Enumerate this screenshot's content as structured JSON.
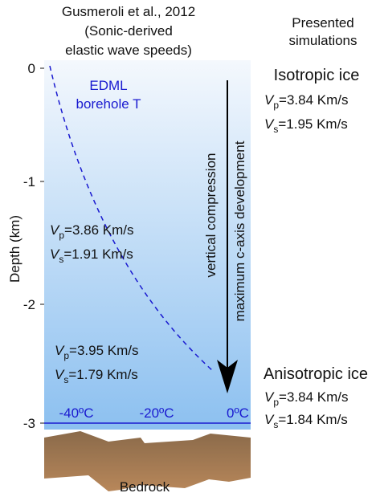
{
  "header": {
    "source": [
      "Gusmeroli et al., 2012",
      "(Sonic-derived",
      "elastic wave speeds)"
    ],
    "simulations": [
      "Presented",
      "simulations"
    ]
  },
  "axis": {
    "label": "Depth (km)",
    "ticks": [
      "0",
      "-1",
      "-2",
      "-3"
    ]
  },
  "temperature_labels": [
    "-40ºC",
    "-20ºC",
    "0ºC"
  ],
  "profile_label": [
    "EDML",
    "borehole T"
  ],
  "arrow_labels": [
    "vertical compression",
    "maximum c-axis development"
  ],
  "bedrock": "Bedrock",
  "measurements": [
    {
      "vp": {
        "symbol": "V",
        "sub": "p",
        "text": "=3.86 Km/s"
      },
      "vs": {
        "symbol": "V",
        "sub": "s",
        "text": "=1.91 Km/s"
      }
    },
    {
      "vp": {
        "symbol": "V",
        "sub": "p",
        "text": "=3.95 Km/s"
      },
      "vs": {
        "symbol": "V",
        "sub": "s",
        "text": "=1.79 Km/s"
      }
    }
  ],
  "simulations": [
    {
      "title": "Isotropic ice",
      "vp": {
        "symbol": "V",
        "sub": "p",
        "text": "=3.84 Km/s"
      },
      "vs": {
        "symbol": "V",
        "sub": "s",
        "text": "=1.95 Km/s"
      }
    },
    {
      "title": "Anisotropic ice",
      "vp": {
        "symbol": "V",
        "sub": "p",
        "text": "=3.84 Km/s"
      },
      "vs": {
        "symbol": "V",
        "sub": "s",
        "text": "=1.84 Km/s"
      }
    }
  ]
}
